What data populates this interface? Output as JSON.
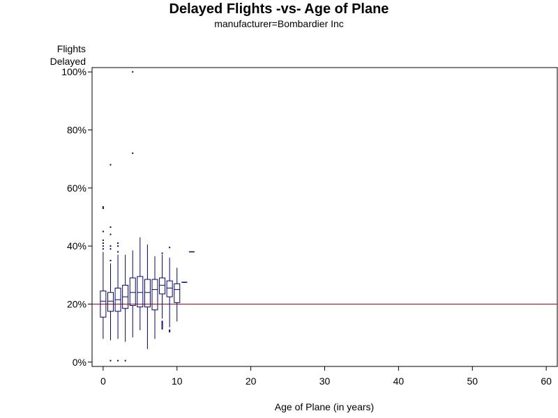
{
  "chart_data": {
    "type": "box",
    "title": "Delayed Flights -vs- Age of Plane",
    "subtitle": "manufacturer=Bombardier Inc",
    "ylabel_line1": "Flights",
    "ylabel_line2": "Delayed",
    "xlabel": "Age of Plane (in years)",
    "xlim": [
      -1.5,
      61.5
    ],
    "ylim": [
      -1.5,
      101.5
    ],
    "x_ticks": [
      0,
      10,
      20,
      30,
      40,
      50,
      60
    ],
    "y_ticks": [
      {
        "value": 0,
        "label": "0%"
      },
      {
        "value": 20,
        "label": "20%"
      },
      {
        "value": 40,
        "label": "40%"
      },
      {
        "value": 60,
        "label": "60%"
      },
      {
        "value": 80,
        "label": "80%"
      },
      {
        "value": 100,
        "label": "100%"
      }
    ],
    "reference_line": {
      "y": 20,
      "color": "#cc0000"
    },
    "box_color": "#000080",
    "boxes": [
      {
        "x": 0,
        "min": 8,
        "q1": 15.5,
        "median": 21,
        "q3": 24.5,
        "max": 38,
        "outliers": [
          39,
          40,
          41,
          42,
          45,
          53,
          53.5
        ]
      },
      {
        "x": 1,
        "min": 7.5,
        "q1": 17.5,
        "median": 21,
        "q3": 24,
        "max": 34,
        "outliers": [
          0.5,
          35,
          39,
          40,
          44,
          46.5,
          68
        ]
      },
      {
        "x": 2,
        "min": 8,
        "q1": 17.5,
        "median": 21.5,
        "q3": 25.5,
        "max": 37,
        "outliers": [
          0.5,
          38,
          40,
          41
        ]
      },
      {
        "x": 3,
        "min": 7,
        "q1": 18.5,
        "median": 22.5,
        "q3": 26.5,
        "max": 37,
        "outliers": [
          0.5
        ]
      },
      {
        "x": 4,
        "min": 8.5,
        "q1": 19.5,
        "median": 24,
        "q3": 29,
        "max": 38.5,
        "outliers": [
          72,
          100
        ]
      },
      {
        "x": 5,
        "min": 11,
        "q1": 19,
        "median": 24,
        "q3": 29.5,
        "max": 43,
        "outliers": []
      },
      {
        "x": 6,
        "min": 4.5,
        "q1": 19,
        "median": 24,
        "q3": 28.5,
        "max": 40.5,
        "outliers": []
      },
      {
        "x": 7,
        "min": 8,
        "q1": 18,
        "median": 25,
        "q3": 28.5,
        "max": 36.5,
        "outliers": []
      },
      {
        "x": 8,
        "min": 15,
        "q1": 23.5,
        "median": 26.5,
        "q3": 29,
        "max": 37,
        "outliers": [
          11.5,
          12,
          12.5,
          13,
          13.5,
          14,
          37.5
        ]
      },
      {
        "x": 9,
        "min": 12,
        "q1": 22.5,
        "median": 25.5,
        "q3": 28,
        "max": 36,
        "outliers": [
          10.5,
          11,
          39.5
        ]
      },
      {
        "x": 10,
        "min": 14,
        "q1": 20.5,
        "median": 25,
        "q3": 27,
        "max": 32.5,
        "outliers": []
      },
      {
        "x": 11,
        "min": 27.5,
        "q1": 27.5,
        "median": 27.5,
        "q3": 27.5,
        "max": 27.5,
        "outliers": []
      },
      {
        "x": 12,
        "min": 38,
        "q1": 38,
        "median": 38,
        "q3": 38,
        "max": 38,
        "outliers": []
      }
    ]
  }
}
